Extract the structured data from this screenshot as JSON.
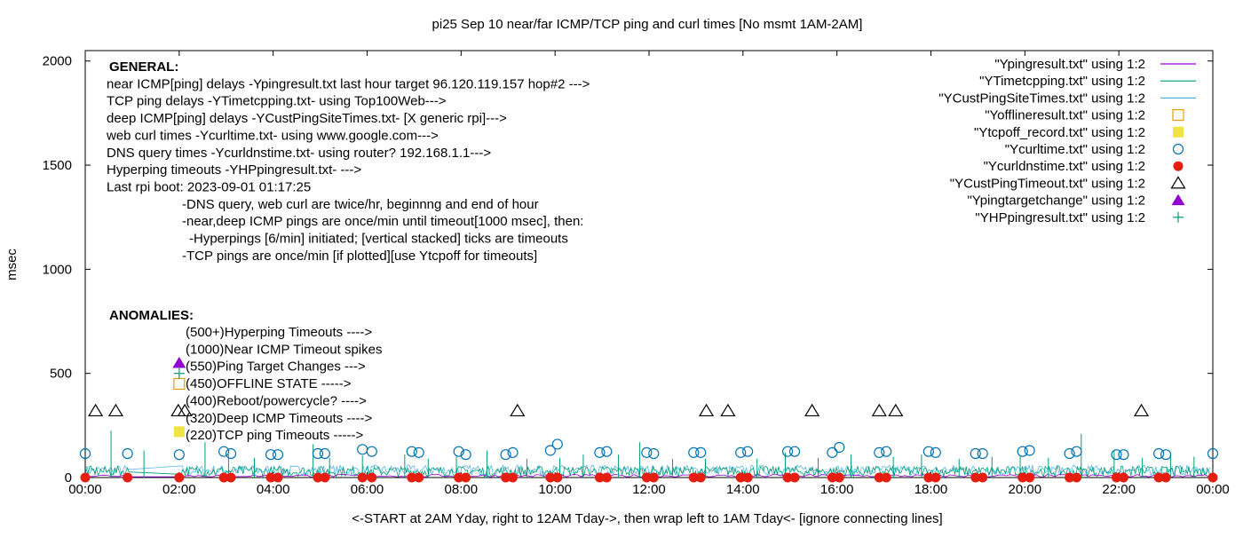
{
  "chart_data": {
    "type": "scatter",
    "title": "pi25 Sep 10  near/far ICMP/TCP ping and curl times [No msmt 1AM-2AM]",
    "xlabel": "<-START at 2AM Yday, right to 12AM Tday->, then wrap left to 1AM Tday<- [ignore connecting lines]",
    "ylabel": "msec",
    "xlim": [
      0,
      24
    ],
    "ylim": [
      0,
      2050
    ],
    "x_ticks": [
      {
        "v": 0,
        "label": "00:00"
      },
      {
        "v": 2,
        "label": "02:00"
      },
      {
        "v": 4,
        "label": "04:00"
      },
      {
        "v": 6,
        "label": "06:00"
      },
      {
        "v": 8,
        "label": "08:00"
      },
      {
        "v": 10,
        "label": "10:00"
      },
      {
        "v": 12,
        "label": "12:00"
      },
      {
        "v": 14,
        "label": "14:00"
      },
      {
        "v": 16,
        "label": "16:00"
      },
      {
        "v": 18,
        "label": "18:00"
      },
      {
        "v": 20,
        "label": "20:00"
      },
      {
        "v": 22,
        "label": "22:00"
      },
      {
        "v": 24,
        "label": "00:00"
      }
    ],
    "y_ticks": [
      {
        "v": 0,
        "label": "0"
      },
      {
        "v": 500,
        "label": "500"
      },
      {
        "v": 1000,
        "label": "1000"
      },
      {
        "v": 1500,
        "label": "1500"
      },
      {
        "v": 2000,
        "label": "2000"
      }
    ],
    "grid": false,
    "legend_position": "top-right",
    "legend": [
      {
        "label": "\"Ypingresult.txt\" using 1:2",
        "marker": "line",
        "color": "#9400d3"
      },
      {
        "label": "\"YTimetcpping.txt\" using 1:2",
        "marker": "line",
        "color": "#009e73"
      },
      {
        "label": "\"YCustPingSiteTimes.txt\" using 1:2",
        "marker": "line",
        "color": "#56b4e9"
      },
      {
        "label": "\"Yofflineresult.txt\" using 1:2",
        "marker": "open-square",
        "color": "#e69f00"
      },
      {
        "label": "\"Ytcpoff_record.txt\" using 1:2",
        "marker": "filled-square",
        "color": "#f0e442"
      },
      {
        "label": "\"Ycurltime.txt\" using 1:2",
        "marker": "open-circle",
        "color": "#0072b2"
      },
      {
        "label": "\"Ycurldnstime.txt\" using 1:2",
        "marker": "filled-circle",
        "color": "#e51e10"
      },
      {
        "label": "\"YCustPingTimeout.txt\" using 1:2",
        "marker": "open-triangle",
        "color": "#000000"
      },
      {
        "label": "\"Ypingtargetchange\" using 1:2",
        "marker": "filled-triangle",
        "color": "#9400d3"
      },
      {
        "label": "\"YHPpingresult.txt\" using 1:2",
        "marker": "plus",
        "color": "#009e73"
      }
    ],
    "annotations_general": [
      "GENERAL:",
      "near ICMP[ping] delays -Ypingresult.txt last hour target 96.120.119.157 hop#2 --->",
      "TCP ping delays -YTimetcpping.txt- using Top100Web--->",
      "deep ICMP[ping] delays -YCustPingSiteTimes.txt- [X generic rpi]--->",
      "web curl times -Ycurltime.txt- using www.google.com--->",
      "DNS query times -Ycurldnstime.txt- using router? 192.168.1.1--->",
      "Hyperping timeouts -YHPpingresult.txt- --->",
      "Last rpi boot: 2023-09-01 01:17:25",
      "-DNS query, web curl are twice/hr, beginnng and end of hour",
      "-near,deep ICMP pings are once/min until timeout[1000 msec], then:",
      "-Hyperpings [6/min] initiated; [vertical stacked] ticks are timeouts",
      "-TCP pings are once/min [if plotted][use Ytcpoff for timeouts]"
    ],
    "annotations_anomalies": [
      "ANOMALIES:",
      "(500+)Hyperping Timeouts ---->",
      "(1000)Near ICMP Timeout spikes",
      "(550)Ping Target Changes --->",
      "(450)OFFLINE STATE ----->",
      "(400)Reboot/powercycle? ---->",
      "(320)Deep ICMP Timeouts ---->",
      "(220)TCP ping Timeouts ----->"
    ],
    "series": [
      {
        "name": "\"YCustPingTimeout.txt\" using 1:2",
        "marker": "open-triangle",
        "color": "#000000",
        "x": [
          0.22,
          0.65,
          1.98,
          2.12,
          9.2,
          13.22,
          13.68,
          15.47,
          16.9,
          17.25,
          22.48
        ],
        "y": [
          320,
          320,
          320,
          320,
          320,
          320,
          320,
          320,
          320,
          320,
          320
        ]
      },
      {
        "name": "\"Ypingtargetchange\" using 1:2",
        "marker": "filled-triangle",
        "color": "#9400d3",
        "x": [
          2.0
        ],
        "y": [
          550
        ]
      },
      {
        "name": "\"Yofflineresult.txt\" using 1:2",
        "marker": "open-square",
        "color": "#e69f00",
        "x": [
          2.0
        ],
        "y": [
          450
        ]
      },
      {
        "name": "\"Ytcpoff_record.txt\" using 1:2",
        "marker": "filled-square",
        "color": "#f0e442",
        "x": [
          2.0
        ],
        "y": [
          220
        ]
      },
      {
        "name": "\"YHPpingresult.txt\" using 1:2",
        "marker": "plus",
        "color": "#009e73",
        "x": [
          2.0
        ],
        "y": [
          500
        ]
      },
      {
        "name": "\"Ycurltime.txt\" using 1:2",
        "marker": "open-circle",
        "color": "#0072b2",
        "x": [
          0.0,
          0.9,
          2.0,
          2.95,
          3.1,
          3.95,
          4.1,
          4.95,
          5.1,
          5.9,
          6.1,
          6.95,
          7.1,
          7.95,
          8.1,
          8.95,
          9.1,
          9.9,
          10.05,
          10.95,
          11.1,
          11.95,
          12.1,
          12.95,
          13.1,
          13.95,
          14.1,
          14.95,
          15.1,
          15.9,
          16.05,
          16.9,
          17.05,
          17.95,
          18.1,
          18.95,
          19.1,
          19.95,
          20.1,
          20.95,
          21.1,
          21.95,
          22.1,
          22.85,
          23.0,
          24.0
        ],
        "y": [
          115,
          115,
          110,
          125,
          115,
          110,
          110,
          115,
          115,
          135,
          125,
          125,
          120,
          125,
          110,
          110,
          120,
          130,
          160,
          120,
          125,
          120,
          115,
          120,
          120,
          120,
          125,
          125,
          125,
          120,
          145,
          120,
          125,
          125,
          120,
          115,
          115,
          125,
          130,
          115,
          125,
          110,
          110,
          115,
          110,
          115
        ]
      },
      {
        "name": "\"Ycurldnstime.txt\" using 1:2",
        "marker": "filled-circle",
        "color": "#e51e10",
        "x": [
          0.0,
          0.9,
          2.0,
          2.95,
          3.1,
          3.95,
          4.1,
          4.95,
          5.1,
          5.9,
          6.1,
          6.95,
          7.1,
          7.95,
          8.1,
          8.95,
          9.1,
          9.9,
          10.05,
          10.95,
          11.1,
          11.95,
          12.1,
          12.95,
          13.1,
          13.95,
          14.1,
          14.95,
          15.1,
          15.9,
          16.05,
          16.9,
          17.05,
          17.95,
          18.1,
          18.95,
          19.1,
          19.95,
          20.1,
          20.95,
          21.1,
          21.95,
          22.1,
          22.85,
          23.0,
          24.0
        ],
        "y": [
          0,
          0,
          0,
          0,
          0,
          0,
          0,
          0,
          0,
          0,
          0,
          0,
          0,
          0,
          0,
          0,
          0,
          0,
          0,
          0,
          0,
          0,
          0,
          0,
          0,
          0,
          0,
          0,
          0,
          0,
          0,
          0,
          0,
          0,
          0,
          0,
          0,
          0,
          0,
          0,
          0,
          0,
          0,
          0,
          0,
          0
        ]
      },
      {
        "name": "\"YTimetcpping.txt\" using 1:2 (spikes)",
        "marker": "spike",
        "color": "#009e73",
        "x": [
          0.55,
          1.25,
          2.55,
          3.05,
          3.6,
          4.85,
          5.2,
          5.9,
          6.8,
          7.3,
          7.9,
          8.55,
          9.4,
          10.1,
          10.6,
          11.35,
          11.8,
          12.5,
          13.2,
          14.3,
          14.9,
          15.6,
          16.3,
          17.2,
          17.8,
          18.6,
          19.3,
          19.9,
          20.5,
          21.2,
          21.9,
          22.5,
          23.1,
          23.6
        ],
        "y": [
          225,
          130,
          170,
          110,
          95,
          160,
          95,
          105,
          110,
          90,
          100,
          130,
          90,
          95,
          110,
          110,
          170,
          90,
          90,
          90,
          120,
          95,
          110,
          100,
          110,
          90,
          100,
          100,
          95,
          210,
          130,
          95,
          105,
          100
        ]
      }
    ],
    "baseline_noise": {
      "color_tcp": "#009e73",
      "color_deep": "#56b4e9",
      "color_near": "#9400d3"
    }
  }
}
